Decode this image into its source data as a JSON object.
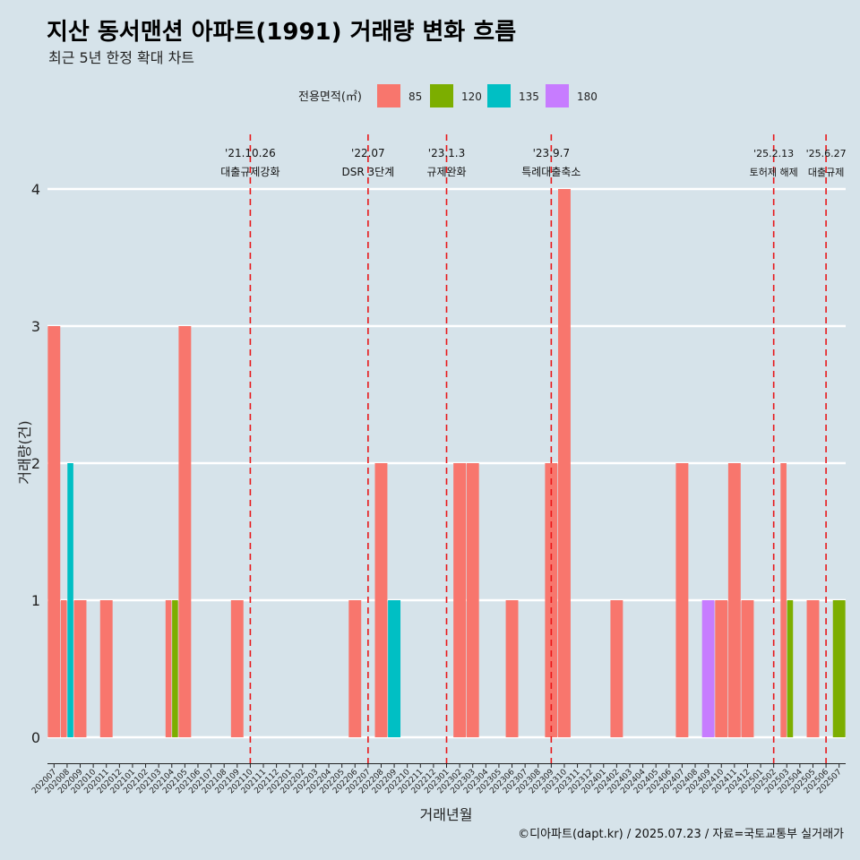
{
  "chart_data": {
    "type": "bar",
    "title": "지산 동서맨션 아파트(1991) 거래량 변화 흐름",
    "subtitle": "최근 5년 한정 확대 차트",
    "xlabel": "거래년월",
    "ylabel": "거래량(건)",
    "ylim": [
      0,
      4
    ],
    "yticks": [
      "0",
      "1",
      "2",
      "3",
      "4"
    ],
    "legend": {
      "title": "전용면적(㎡)",
      "position": "top",
      "items": [
        {
          "label": "85",
          "color": "#f8766d"
        },
        {
          "label": "120",
          "color": "#7cae00"
        },
        {
          "label": "135",
          "color": "#00bfc4"
        },
        {
          "label": "180",
          "color": "#c77cff"
        }
      ]
    },
    "categories": [
      "202007",
      "202008",
      "202009",
      "202010",
      "202011",
      "202012",
      "202101",
      "202102",
      "202103",
      "202104",
      "202105",
      "202106",
      "202107",
      "202108",
      "202109",
      "202110",
      "202111",
      "202112",
      "202201",
      "202202",
      "202203",
      "202204",
      "202205",
      "202206",
      "202207",
      "202208",
      "202209",
      "202210",
      "202211",
      "202212",
      "202301",
      "202302",
      "202303",
      "202304",
      "202305",
      "202306",
      "202307",
      "202308",
      "202309",
      "202310",
      "202311",
      "202312",
      "202401",
      "202402",
      "202403",
      "202404",
      "202405",
      "202406",
      "202407",
      "202408",
      "202409",
      "202410",
      "202411",
      "202412",
      "202501",
      "202502",
      "202503",
      "202504",
      "202505",
      "202506",
      "202507"
    ],
    "series": [
      {
        "name": "85",
        "color": "#f8766d",
        "values": [
          3,
          1,
          1,
          0,
          1,
          0,
          0,
          0,
          0,
          1,
          3,
          0,
          0,
          0,
          1,
          0,
          0,
          0,
          0,
          0,
          0,
          0,
          0,
          1,
          0,
          2,
          0,
          0,
          0,
          0,
          0,
          2,
          2,
          0,
          0,
          1,
          0,
          0,
          2,
          4,
          0,
          0,
          0,
          1,
          0,
          0,
          0,
          0,
          2,
          0,
          0,
          1,
          2,
          1,
          0,
          0,
          2,
          0,
          1,
          0,
          0
        ]
      },
      {
        "name": "120",
        "color": "#7cae00",
        "values": [
          0,
          0,
          0,
          0,
          0,
          0,
          0,
          0,
          0,
          1,
          0,
          0,
          0,
          0,
          0,
          0,
          0,
          0,
          0,
          0,
          0,
          0,
          0,
          0,
          0,
          0,
          0,
          0,
          0,
          0,
          0,
          0,
          0,
          0,
          0,
          0,
          0,
          0,
          0,
          0,
          0,
          0,
          0,
          0,
          0,
          0,
          0,
          0,
          0,
          0,
          0,
          0,
          0,
          0,
          0,
          0,
          1,
          0,
          0,
          0,
          1
        ]
      },
      {
        "name": "135",
        "color": "#00bfc4",
        "values": [
          0,
          2,
          0,
          0,
          0,
          0,
          0,
          0,
          0,
          0,
          0,
          0,
          0,
          0,
          0,
          0,
          0,
          0,
          0,
          0,
          0,
          0,
          0,
          0,
          0,
          0,
          1,
          0,
          0,
          0,
          0,
          0,
          0,
          0,
          0,
          0,
          0,
          0,
          0,
          0,
          0,
          0,
          0,
          0,
          0,
          0,
          0,
          0,
          0,
          0,
          0,
          0,
          0,
          0,
          0,
          0,
          0,
          0,
          0,
          0,
          0
        ]
      },
      {
        "name": "180",
        "color": "#c77cff",
        "values": [
          0,
          0,
          0,
          0,
          0,
          0,
          0,
          0,
          0,
          0,
          0,
          0,
          0,
          0,
          0,
          0,
          0,
          0,
          0,
          0,
          0,
          0,
          0,
          0,
          0,
          0,
          0,
          0,
          0,
          0,
          0,
          0,
          0,
          0,
          0,
          0,
          0,
          0,
          0,
          0,
          0,
          0,
          0,
          0,
          0,
          0,
          0,
          0,
          0,
          0,
          1,
          0,
          0,
          0,
          0,
          0,
          0,
          0,
          0,
          0,
          0
        ]
      }
    ],
    "events": [
      {
        "x": 15.5,
        "date": "'21.10.26",
        "label": "대출규제강화"
      },
      {
        "x": 24.5,
        "date": "'22.07",
        "label": "DSR 3단계"
      },
      {
        "x": 30.5,
        "date": "'23.1.3",
        "label": "규제완화"
      },
      {
        "x": 38.5,
        "date": "'23.9.7",
        "label": "특례대출축소"
      },
      {
        "x": 55.5,
        "date": "'25.2.13",
        "label": "토허제 해제"
      },
      {
        "x": 59.5,
        "date": "'25.6.27",
        "label": "대출규제"
      }
    ],
    "grid": true,
    "caption": "©디아파트(dapt.kr) / 2025.07.23 / 자료=국토교통부 실거래가"
  },
  "colors": {
    "background": "#d6e3ea",
    "gridline": "#ffffff",
    "event_line": "#e8181a"
  }
}
